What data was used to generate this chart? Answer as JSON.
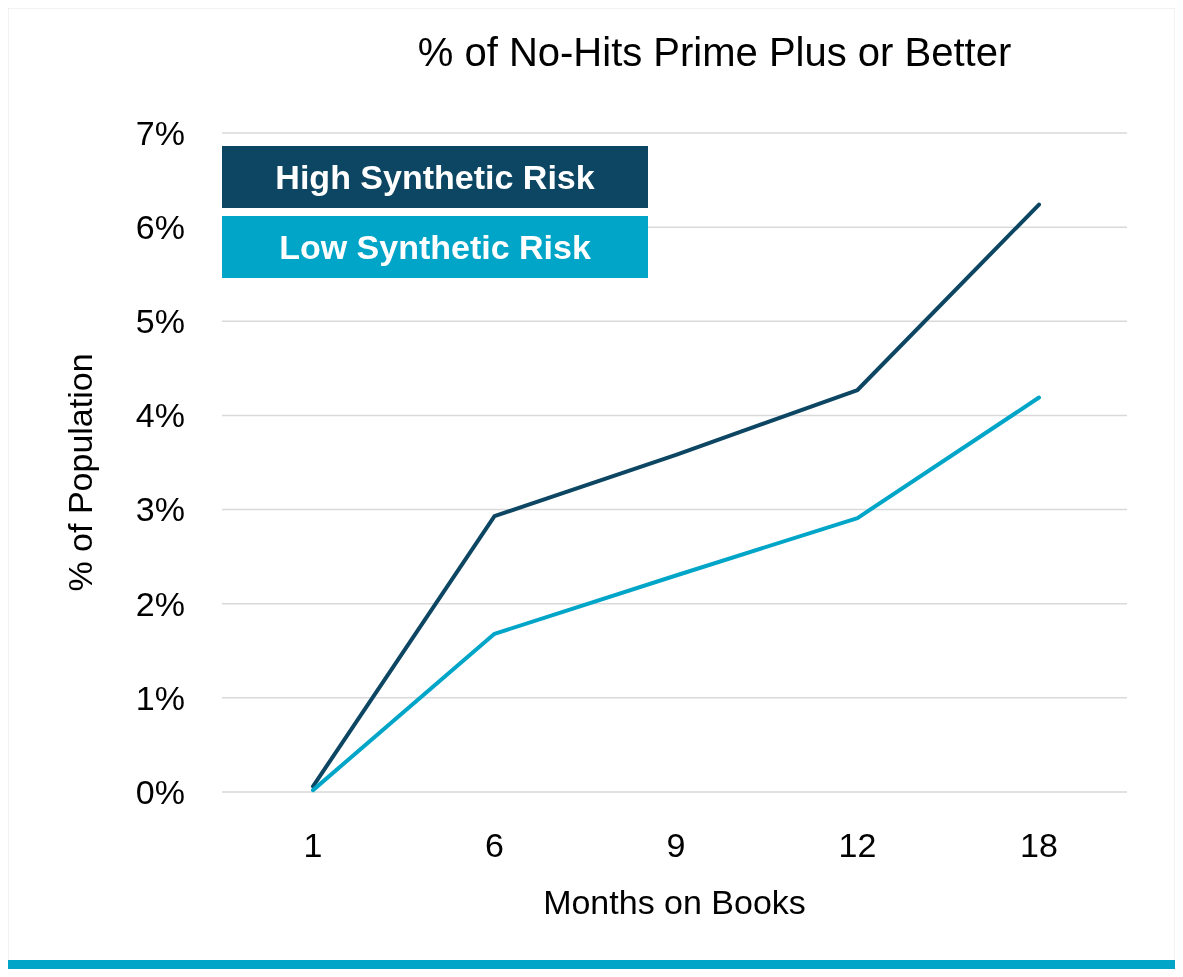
{
  "chart_data": {
    "type": "line",
    "title": "% of No-Hits Prime Plus or Better",
    "xlabel": "Months on Books",
    "ylabel": "% of Population",
    "categories": [
      "1",
      "6",
      "9",
      "12",
      "18"
    ],
    "series": [
      {
        "name": "High Synthetic Risk",
        "color": "#0d4663",
        "values": [
          0.06,
          2.93,
          3.58,
          4.27,
          6.24
        ]
      },
      {
        "name": "Low Synthetic Risk",
        "color": "#00a5c8",
        "values": [
          0.02,
          1.68,
          2.3,
          2.91,
          4.19
        ]
      }
    ],
    "ylim": [
      0,
      7
    ],
    "yticks": [
      {
        "value": 0,
        "label": "0%"
      },
      {
        "value": 1,
        "label": "1%"
      },
      {
        "value": 2,
        "label": "2%"
      },
      {
        "value": 3,
        "label": "3%"
      },
      {
        "value": 4,
        "label": "4%"
      },
      {
        "value": 5,
        "label": "5%"
      },
      {
        "value": 6,
        "label": "6%"
      },
      {
        "value": 7,
        "label": "7%"
      }
    ],
    "grid": "y",
    "legend": "top left",
    "marker": "none",
    "line_style": "solid"
  }
}
